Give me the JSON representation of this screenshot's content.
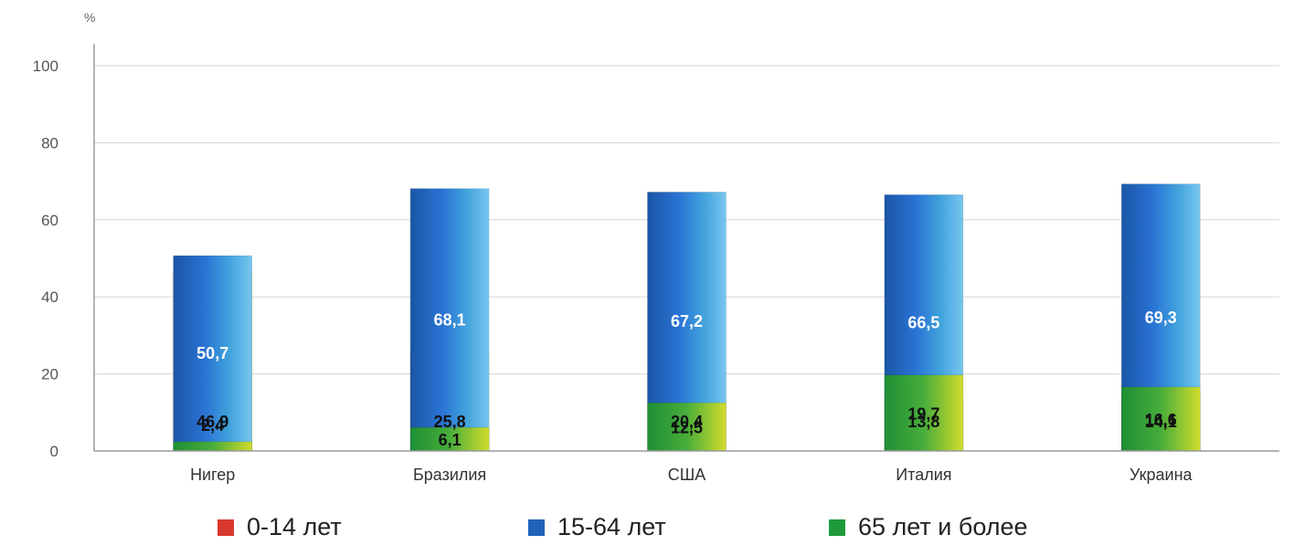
{
  "chart_data": {
    "type": "bar",
    "stacked": true,
    "unit_label": "%",
    "title": "",
    "xlabel": "",
    "ylabel": "",
    "ylim": [
      0,
      100
    ],
    "yticks": [
      "0",
      "20",
      "40",
      "60",
      "80",
      "100"
    ],
    "categories": [
      "Нигер",
      "Бразилия",
      "США",
      "Италия",
      "Украина"
    ],
    "series": [
      {
        "name": "0-14 лет",
        "values": [
          46.9,
          25.8,
          20.4,
          13.8,
          14.1
        ],
        "labels": [
          "46,9",
          "25,8",
          "20,4",
          "13,8",
          "14,1"
        ],
        "color": "#d9382e"
      },
      {
        "name": "15-64 лет",
        "values": [
          50.7,
          68.1,
          67.2,
          66.5,
          69.3
        ],
        "labels": [
          "50,7",
          "68,1",
          "67,2",
          "66,5",
          "69,3"
        ],
        "color": "#1f62b8"
      },
      {
        "name": "65 лет и более",
        "values": [
          2.4,
          6.1,
          12.5,
          19.7,
          16.6
        ],
        "labels": [
          "2,4",
          "6,1",
          "12,5",
          "19,7",
          "16,6"
        ],
        "color": "#1e9a3a"
      }
    ],
    "grid": true,
    "legend_position": "bottom"
  },
  "legend": {
    "items": [
      {
        "label": "0-14 лет",
        "color": "#d9382e"
      },
      {
        "label": "15-64 лет",
        "color": "#1f62b8"
      },
      {
        "label": "65 лет и более",
        "color": "#1e9a3a"
      }
    ]
  }
}
